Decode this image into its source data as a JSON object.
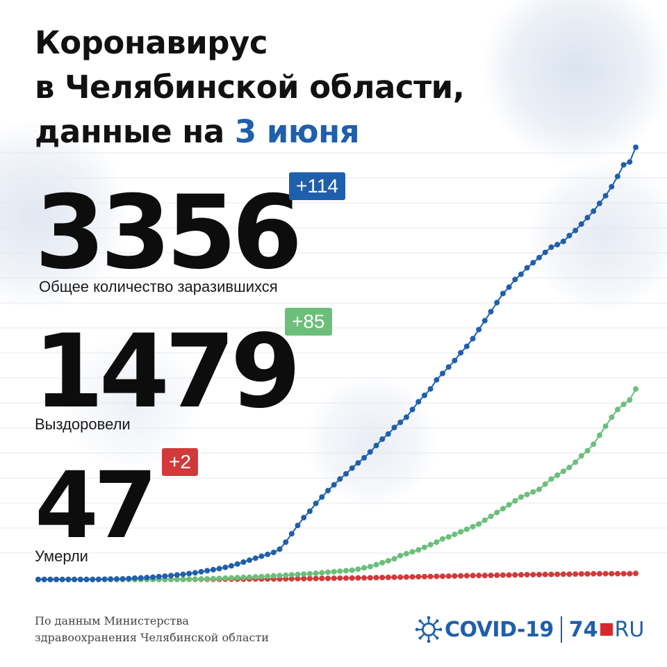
{
  "title": {
    "line1": "Коронавирус",
    "line2": "в Челябинской области,",
    "line3_prefix": "данные на ",
    "line3_date": "3 июня"
  },
  "stats": {
    "infected": {
      "value": "3356",
      "delta": "+114",
      "label": "Общее количество заразившихся",
      "color": "#1f5fab"
    },
    "recovered": {
      "value": "1479",
      "delta": "+85",
      "label": "Выздоровели",
      "color": "#6bbf7a"
    },
    "deaths": {
      "value": "47",
      "delta": "+2",
      "label": "Умерли",
      "color": "#d13a3a"
    }
  },
  "source": {
    "line1": "По данным Министерства",
    "line2": "здравоохранения Челябинской области"
  },
  "brand": {
    "covid": "COVID-19",
    "number": "74",
    "ru": "RU",
    "icon": "virus-icon"
  },
  "chart_data": {
    "type": "line",
    "x_unit": "day",
    "x": [
      1,
      2,
      3,
      4,
      5,
      6,
      7,
      8,
      9,
      10,
      11,
      12,
      13,
      14,
      15,
      16,
      17,
      18,
      19,
      20,
      21,
      22,
      23,
      24,
      25,
      26,
      27,
      28,
      29,
      30,
      31,
      32,
      33,
      34,
      35,
      36,
      37,
      38,
      39,
      40,
      41,
      42,
      43,
      44,
      45,
      46,
      47,
      48,
      49,
      50,
      51,
      52,
      53,
      54,
      55,
      56,
      57,
      58,
      59,
      60,
      61,
      62,
      63,
      64,
      65,
      66,
      67,
      68,
      69,
      70,
      71,
      72,
      73,
      74,
      75,
      76,
      77,
      78,
      79,
      80,
      81,
      82,
      83,
      84,
      85,
      86,
      87,
      88,
      89,
      90,
      91,
      92,
      93,
      94,
      95,
      96,
      97,
      98,
      99,
      100
    ],
    "grid": true,
    "series": [
      {
        "key": "infected",
        "color": "#1f5fab",
        "values": [
          0,
          0,
          0,
          0,
          0,
          0,
          0,
          0,
          0,
          0,
          1,
          2,
          3,
          4,
          5,
          7,
          10,
          12,
          15,
          18,
          22,
          26,
          30,
          35,
          40,
          46,
          52,
          60,
          68,
          76,
          84,
          94,
          106,
          120,
          135,
          150,
          165,
          180,
          195,
          210,
          235,
          290,
          355,
          420,
          480,
          530,
          590,
          640,
          690,
          735,
          780,
          820,
          865,
          905,
          945,
          990,
          1040,
          1090,
          1130,
          1180,
          1220,
          1260,
          1320,
          1380,
          1430,
          1480,
          1550,
          1600,
          1650,
          1700,
          1760,
          1810,
          1870,
          1940,
          2010,
          2080,
          2150,
          2220,
          2270,
          2330,
          2370,
          2420,
          2460,
          2500,
          2540,
          2580,
          2600,
          2625,
          2670,
          2710,
          2760,
          2810,
          2860,
          2920,
          2980,
          3050,
          3130,
          3220,
          3242,
          3356
        ]
      },
      {
        "key": "recovered",
        "color": "#6bbf7a",
        "values": [
          0,
          0,
          0,
          0,
          0,
          0,
          0,
          0,
          0,
          0,
          0,
          0,
          0,
          0,
          0,
          0,
          0,
          0,
          0,
          0,
          0,
          0,
          0,
          0,
          1,
          2,
          3,
          4,
          5,
          6,
          8,
          10,
          12,
          14,
          16,
          18,
          20,
          22,
          25,
          28,
          30,
          33,
          36,
          39,
          42,
          45,
          48,
          52,
          56,
          60,
          64,
          68,
          72,
          80,
          90,
          100,
          115,
          130,
          145,
          160,
          185,
          200,
          215,
          230,
          250,
          270,
          290,
          315,
          330,
          350,
          370,
          390,
          410,
          430,
          460,
          490,
          520,
          550,
          580,
          610,
          640,
          660,
          680,
          700,
          740,
          780,
          810,
          840,
          870,
          910,
          960,
          1000,
          1050,
          1120,
          1190,
          1260,
          1320,
          1360,
          1394,
          1479
        ]
      },
      {
        "key": "deaths",
        "color": "#d13a3a",
        "values": [
          0,
          0,
          0,
          0,
          0,
          0,
          0,
          0,
          0,
          0,
          0,
          0,
          0,
          0,
          0,
          0,
          0,
          0,
          0,
          0,
          0,
          0,
          0,
          0,
          0,
          1,
          1,
          1,
          1,
          1,
          1,
          2,
          2,
          2,
          2,
          3,
          3,
          3,
          4,
          4,
          4,
          5,
          5,
          6,
          6,
          7,
          7,
          8,
          8,
          9,
          10,
          10,
          11,
          12,
          12,
          13,
          14,
          15,
          16,
          17,
          18,
          19,
          20,
          21,
          22,
          23,
          24,
          25,
          26,
          27,
          28,
          29,
          30,
          31,
          31,
          32,
          33,
          34,
          34,
          35,
          36,
          37,
          37,
          38,
          39,
          39,
          40,
          41,
          41,
          42,
          43,
          43,
          44,
          44,
          45,
          45,
          45,
          45,
          45,
          47
        ]
      }
    ]
  }
}
